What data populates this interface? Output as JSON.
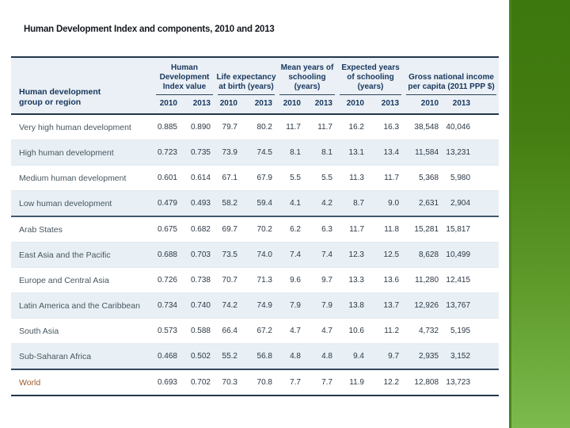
{
  "slide": {
    "title": "Human Development Index and components, 2010 and 2013",
    "accent_green_top": "#3c780e",
    "accent_green_bottom": "#7cba4e",
    "header_navy": "#17365d",
    "header_bg": "#eaf0f5",
    "zebra_bg": "#e8f0f5"
  },
  "table": {
    "row_header": "Human development group or region",
    "year_columns": [
      "2010",
      "2013"
    ],
    "groups": [
      {
        "title": "Human Development Index value"
      },
      {
        "title": "Life expectancy at birth (years)"
      },
      {
        "title": "Mean years of schooling (years)"
      },
      {
        "title": "Expected years of schooling (years)"
      },
      {
        "title": "Gross national income per capita (2011 PPP $)"
      }
    ],
    "rows": [
      {
        "label": "Very high human development",
        "values": [
          "0.885",
          "0.890",
          "79.7",
          "80.2",
          "11.7",
          "11.7",
          "16.2",
          "16.3",
          "38,548",
          "40,046"
        ]
      },
      {
        "label": "High human development",
        "values": [
          "0.723",
          "0.735",
          "73.9",
          "74.5",
          "8.1",
          "8.1",
          "13.1",
          "13.4",
          "11,584",
          "13,231"
        ]
      },
      {
        "label": "Medium human development",
        "values": [
          "0.601",
          "0.614",
          "67.1",
          "67.9",
          "5.5",
          "5.5",
          "11.3",
          "11.7",
          "5,368",
          "5,980"
        ]
      },
      {
        "label": "Low human development",
        "values": [
          "0.479",
          "0.493",
          "58.2",
          "59.4",
          "4.1",
          "4.2",
          "8.7",
          "9.0",
          "2,631",
          "2,904"
        ]
      },
      {
        "label": "Arab States",
        "values": [
          "0.675",
          "0.682",
          "69.7",
          "70.2",
          "6.2",
          "6.3",
          "11.7",
          "11.8",
          "15,281",
          "15,817"
        ]
      },
      {
        "label": "East Asia and the Pacific",
        "values": [
          "0.688",
          "0.703",
          "73.5",
          "74.0",
          "7.4",
          "7.4",
          "12.3",
          "12.5",
          "8,628",
          "10,499"
        ]
      },
      {
        "label": "Europe and Central Asia",
        "values": [
          "0.726",
          "0.738",
          "70.7",
          "71.3",
          "9.6",
          "9.7",
          "13.3",
          "13.6",
          "11,280",
          "12,415"
        ]
      },
      {
        "label": "Latin America and the Caribbean",
        "values": [
          "0.734",
          "0.740",
          "74.2",
          "74.9",
          "7.9",
          "7.9",
          "13.8",
          "13.7",
          "12,926",
          "13,767"
        ]
      },
      {
        "label": "South Asia",
        "values": [
          "0.573",
          "0.588",
          "66.4",
          "67.2",
          "4.7",
          "4.7",
          "10.6",
          "11.2",
          "4,732",
          "5,195"
        ]
      },
      {
        "label": "Sub-Saharan Africa",
        "values": [
          "0.468",
          "0.502",
          "55.2",
          "56.8",
          "4.8",
          "4.8",
          "9.4",
          "9.7",
          "2,935",
          "3,152"
        ]
      },
      {
        "label": "World",
        "values": [
          "0.693",
          "0.702",
          "70.3",
          "70.8",
          "7.7",
          "7.7",
          "11.9",
          "12.2",
          "12,808",
          "13,723"
        ]
      }
    ]
  }
}
